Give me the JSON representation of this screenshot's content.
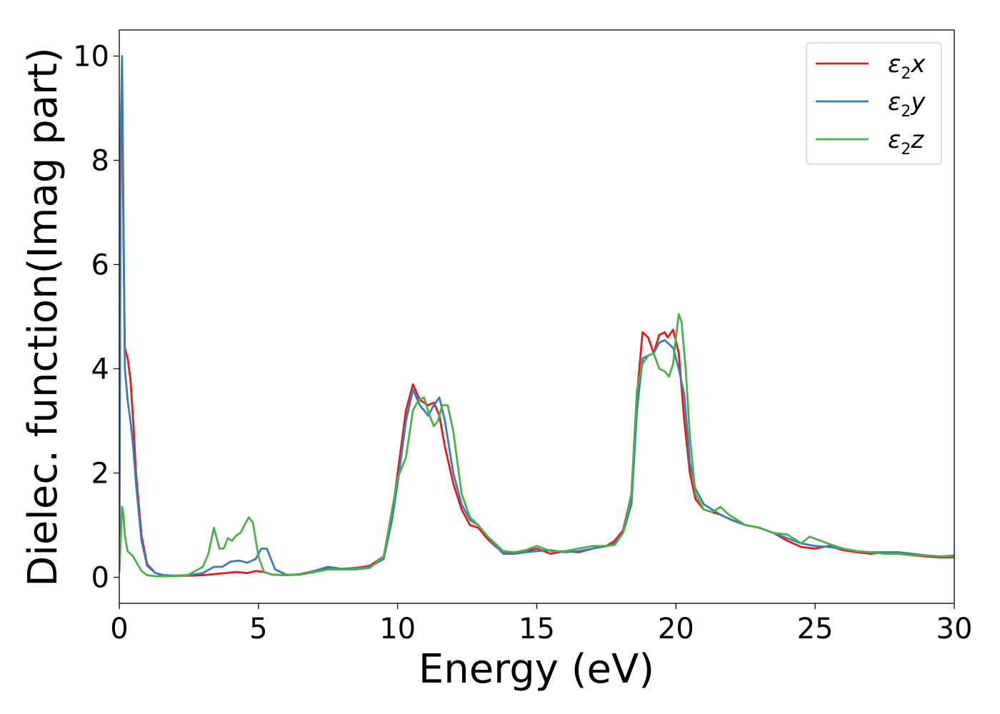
{
  "colors": {
    "x": "#e41a1c",
    "y": "#377eb8",
    "z": "#4daf4a",
    "axis": "#000000",
    "legend_border": "#cccccc"
  },
  "chart_data": {
    "type": "line",
    "title": "",
    "xlabel": "Energy (eV)",
    "ylabel": "Dielec. function(Imag part)",
    "xlim": [
      0,
      30
    ],
    "ylim": [
      -0.5,
      10.5
    ],
    "xticks": [
      0,
      5,
      10,
      15,
      20,
      25,
      30
    ],
    "yticks": [
      0,
      2,
      4,
      6,
      8,
      10
    ],
    "grid": false,
    "legend": {
      "placement": "top-right"
    },
    "series": [
      {
        "name": "ε2x",
        "legend_symbol": "ε",
        "legend_sub": "2",
        "legend_var": "x",
        "color_key": "x",
        "x": [
          0.0,
          0.05,
          0.1,
          0.15,
          0.2,
          0.3,
          0.4,
          0.5,
          0.6,
          0.8,
          1.0,
          1.3,
          1.6,
          2.0,
          2.5,
          3.0,
          3.4,
          3.8,
          4.2,
          4.6,
          4.9,
          5.2,
          5.5,
          6.0,
          6.5,
          7.0,
          7.5,
          8.0,
          8.5,
          9.0,
          9.5,
          9.8,
          10.0,
          10.3,
          10.55,
          10.8,
          11.1,
          11.3,
          11.5,
          11.7,
          12.0,
          12.3,
          12.6,
          12.9,
          13.2,
          13.5,
          13.8,
          14.2,
          14.6,
          15.0,
          15.5,
          16.0,
          16.5,
          17.0,
          17.5,
          17.8,
          18.1,
          18.4,
          18.6,
          18.8,
          19.0,
          19.2,
          19.4,
          19.6,
          19.7,
          19.9,
          20.1,
          20.3,
          20.5,
          20.7,
          21.0,
          21.3,
          21.6,
          22.0,
          22.5,
          23.0,
          23.5,
          24.0,
          24.5,
          25.0,
          25.5,
          26.0,
          26.5,
          27.0,
          27.5,
          28.0,
          28.5,
          29.0,
          29.5,
          30.0
        ],
        "values": [
          0.1,
          8.2,
          9.6,
          6.5,
          4.4,
          4.2,
          3.8,
          3.0,
          2.0,
          0.8,
          0.25,
          0.08,
          0.04,
          0.03,
          0.03,
          0.04,
          0.06,
          0.08,
          0.1,
          0.08,
          0.12,
          0.1,
          0.05,
          0.04,
          0.06,
          0.12,
          0.18,
          0.16,
          0.18,
          0.22,
          0.4,
          1.2,
          2.0,
          3.2,
          3.7,
          3.4,
          3.3,
          3.35,
          3.1,
          2.5,
          1.8,
          1.3,
          1.0,
          0.95,
          0.75,
          0.6,
          0.48,
          0.45,
          0.5,
          0.55,
          0.45,
          0.5,
          0.48,
          0.55,
          0.6,
          0.7,
          0.9,
          1.6,
          3.5,
          4.7,
          4.6,
          4.3,
          4.65,
          4.7,
          4.6,
          4.75,
          4.3,
          3.0,
          2.0,
          1.5,
          1.3,
          1.25,
          1.2,
          1.1,
          1.0,
          0.95,
          0.85,
          0.7,
          0.58,
          0.55,
          0.6,
          0.52,
          0.48,
          0.45,
          0.48,
          0.45,
          0.42,
          0.4,
          0.38,
          0.38
        ]
      },
      {
        "name": "ε2y",
        "legend_symbol": "ε",
        "legend_sub": "2",
        "legend_var": "y",
        "color_key": "y",
        "x": [
          0.0,
          0.05,
          0.1,
          0.15,
          0.2,
          0.3,
          0.4,
          0.5,
          0.6,
          0.8,
          1.0,
          1.3,
          1.6,
          2.0,
          2.5,
          3.0,
          3.4,
          3.7,
          4.0,
          4.3,
          4.6,
          4.9,
          5.1,
          5.3,
          5.6,
          6.0,
          6.5,
          7.0,
          7.5,
          8.0,
          8.5,
          9.0,
          9.5,
          9.8,
          10.0,
          10.3,
          10.55,
          10.8,
          11.1,
          11.3,
          11.5,
          11.7,
          12.0,
          12.3,
          12.6,
          12.9,
          13.2,
          13.5,
          13.8,
          14.2,
          14.6,
          15.0,
          15.5,
          16.0,
          16.5,
          17.0,
          17.5,
          17.8,
          18.1,
          18.4,
          18.6,
          18.8,
          19.0,
          19.2,
          19.4,
          19.6,
          19.7,
          19.9,
          20.1,
          20.3,
          20.5,
          20.7,
          21.0,
          21.3,
          21.6,
          22.0,
          22.5,
          23.0,
          23.5,
          24.0,
          24.5,
          25.0,
          25.5,
          26.0,
          26.5,
          27.0,
          27.5,
          28.0,
          28.5,
          29.0,
          29.5,
          30.0
        ],
        "values": [
          0.1,
          8.5,
          10.0,
          7.0,
          4.0,
          3.4,
          3.0,
          2.5,
          1.8,
          0.7,
          0.22,
          0.08,
          0.04,
          0.03,
          0.04,
          0.08,
          0.2,
          0.2,
          0.3,
          0.32,
          0.28,
          0.35,
          0.55,
          0.55,
          0.15,
          0.05,
          0.05,
          0.12,
          0.2,
          0.16,
          0.17,
          0.2,
          0.35,
          1.1,
          1.8,
          3.0,
          3.6,
          3.3,
          3.1,
          3.3,
          3.45,
          3.0,
          2.0,
          1.4,
          1.1,
          1.0,
          0.8,
          0.62,
          0.45,
          0.45,
          0.48,
          0.5,
          0.52,
          0.48,
          0.5,
          0.55,
          0.6,
          0.65,
          0.85,
          1.4,
          3.2,
          4.2,
          4.25,
          4.3,
          4.5,
          4.55,
          4.5,
          4.4,
          4.0,
          3.5,
          2.2,
          1.7,
          1.4,
          1.3,
          1.2,
          1.1,
          1.0,
          0.95,
          0.85,
          0.75,
          0.65,
          0.6,
          0.58,
          0.55,
          0.5,
          0.48,
          0.48,
          0.48,
          0.45,
          0.42,
          0.4,
          0.4
        ]
      },
      {
        "name": "ε2z",
        "legend_symbol": "ε",
        "legend_sub": "2",
        "legend_var": "z",
        "color_key": "z",
        "x": [
          0.0,
          0.05,
          0.1,
          0.15,
          0.2,
          0.3,
          0.4,
          0.5,
          0.6,
          0.8,
          1.0,
          1.3,
          1.6,
          2.0,
          2.5,
          3.0,
          3.2,
          3.4,
          3.6,
          3.75,
          3.9,
          4.05,
          4.2,
          4.35,
          4.5,
          4.65,
          4.8,
          5.0,
          5.2,
          5.5,
          6.0,
          6.5,
          7.0,
          7.5,
          8.0,
          8.5,
          9.0,
          9.5,
          9.8,
          10.0,
          10.3,
          10.55,
          10.75,
          10.95,
          11.15,
          11.3,
          11.45,
          11.6,
          11.8,
          12.0,
          12.3,
          12.6,
          12.9,
          13.2,
          13.5,
          13.8,
          14.2,
          14.6,
          15.0,
          15.5,
          16.0,
          16.5,
          17.0,
          17.5,
          17.8,
          18.1,
          18.4,
          18.6,
          18.8,
          19.0,
          19.2,
          19.4,
          19.6,
          19.75,
          19.9,
          20.0,
          20.1,
          20.2,
          20.35,
          20.5,
          20.7,
          21.0,
          21.3,
          21.6,
          21.9,
          22.2,
          22.5,
          23.0,
          23.5,
          24.0,
          24.5,
          24.8,
          25.2,
          25.6,
          26.0,
          26.5,
          27.0,
          27.5,
          28.0,
          28.5,
          29.0,
          29.5,
          30.0
        ],
        "values": [
          0.1,
          0.7,
          1.35,
          1.2,
          0.8,
          0.5,
          0.45,
          0.4,
          0.3,
          0.12,
          0.04,
          0.02,
          0.02,
          0.02,
          0.05,
          0.2,
          0.45,
          0.95,
          0.55,
          0.55,
          0.75,
          0.7,
          0.8,
          0.85,
          1.0,
          1.15,
          1.05,
          0.4,
          0.1,
          0.05,
          0.04,
          0.05,
          0.1,
          0.15,
          0.15,
          0.15,
          0.18,
          0.4,
          1.3,
          1.9,
          2.3,
          3.2,
          3.4,
          3.45,
          3.1,
          2.9,
          3.0,
          3.3,
          3.3,
          2.8,
          1.6,
          1.15,
          1.0,
          0.8,
          0.65,
          0.5,
          0.48,
          0.52,
          0.6,
          0.5,
          0.5,
          0.55,
          0.6,
          0.6,
          0.62,
          0.85,
          1.6,
          3.6,
          4.1,
          4.25,
          4.3,
          4.0,
          3.95,
          3.85,
          4.1,
          4.6,
          5.05,
          4.9,
          4.0,
          2.7,
          1.6,
          1.3,
          1.25,
          1.35,
          1.2,
          1.1,
          1.0,
          0.95,
          0.85,
          0.82,
          0.65,
          0.78,
          0.7,
          0.62,
          0.55,
          0.5,
          0.48,
          0.45,
          0.45,
          0.42,
          0.42,
          0.4,
          0.42
        ]
      }
    ]
  }
}
